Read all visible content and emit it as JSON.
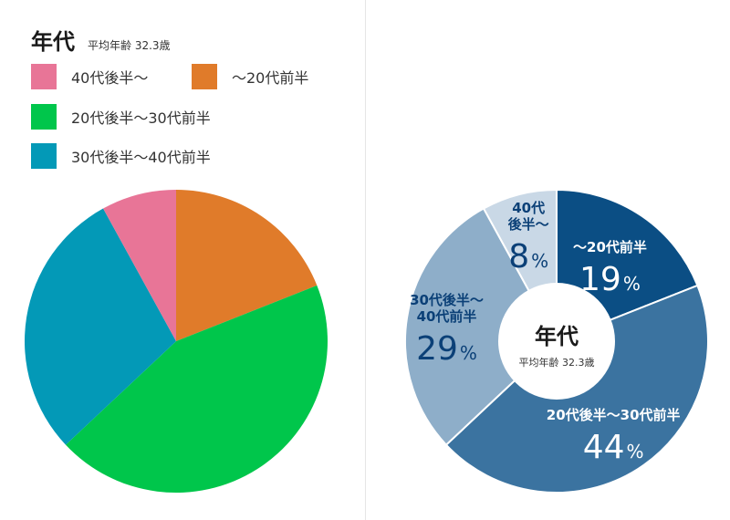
{
  "left": {
    "title": "年代",
    "subtitle": "平均年齢 32.3歳",
    "legend": [
      {
        "label": "40代後半～",
        "color": "#e87597"
      },
      {
        "label": "～20代前半",
        "color": "#e07b2a"
      },
      {
        "label": "20代後半～30代前半",
        "color": "#00c64b"
      },
      {
        "label": "30代後半～40代前半",
        "color": "#0399b7"
      }
    ]
  },
  "right": {
    "center_title": "年代",
    "center_subtitle": "平均年齢 32.3歳"
  },
  "chart_data": [
    {
      "type": "pie",
      "start": "12 o'clock",
      "direction": "clockwise",
      "slices": [
        {
          "label": "～20代前半",
          "value": 19,
          "color": "#e07b2a"
        },
        {
          "label": "20代後半～30代前半",
          "value": 44,
          "color": "#00c64b"
        },
        {
          "label": "30代後半～40代前半",
          "value": 29,
          "color": "#0399b7"
        },
        {
          "label": "40代後半～",
          "value": 8,
          "color": "#e87597"
        }
      ]
    },
    {
      "type": "pie",
      "variant": "donut",
      "start": "12 o'clock",
      "direction": "clockwise",
      "slices": [
        {
          "label_lines": [
            "～20代前半"
          ],
          "value": 19,
          "value_text": "19",
          "unit": "%",
          "color": "#0b4e84",
          "text_color": "#ffffff"
        },
        {
          "label_lines": [
            "20代後半～30代前半"
          ],
          "value": 44,
          "value_text": "44",
          "unit": "%",
          "color": "#3b73a0",
          "text_color": "#ffffff"
        },
        {
          "label_lines": [
            "30代後半～",
            "40代前半"
          ],
          "value": 29,
          "value_text": "29",
          "unit": "%",
          "color": "#8eaec9",
          "text_color": "#0b4077"
        },
        {
          "label_lines": [
            "40代",
            "後半～"
          ],
          "value": 8,
          "value_text": "8",
          "unit": "%",
          "color": "#c9d8e6",
          "text_color": "#0b4077"
        }
      ]
    }
  ]
}
